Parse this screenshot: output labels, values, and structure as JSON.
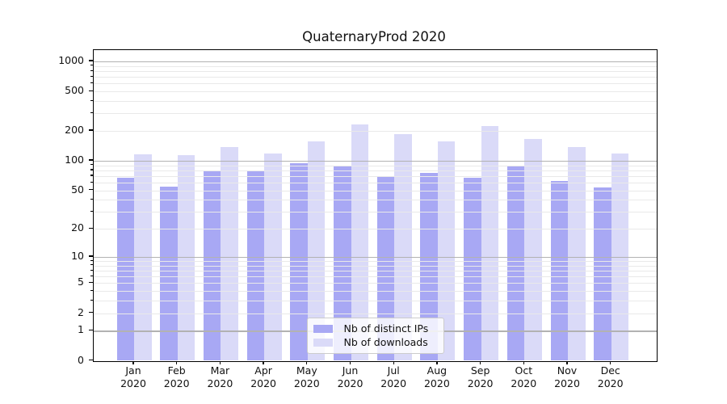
{
  "title": "QuaternaryProd 2020",
  "colors": {
    "bar_distinct_ips": "#a8a8f4",
    "bar_downloads": "#dadaf8",
    "grid_major": "#b2b2b2",
    "grid_minor": "#e9e9e9",
    "spine": "#000000",
    "background": "#ffffff"
  },
  "legend": {
    "items": [
      {
        "label": "Nb of distinct IPs",
        "color": "#a8a8f4"
      },
      {
        "label": "Nb of downloads",
        "color": "#dadaf8"
      }
    ]
  },
  "chart_data": {
    "type": "bar",
    "title": "QuaternaryProd 2020",
    "categories": [
      "Jan 2020",
      "Feb 2020",
      "Mar 2020",
      "Apr 2020",
      "May 2020",
      "Jun 2020",
      "Jul 2020",
      "Aug 2020",
      "Sep 2020",
      "Oct 2020",
      "Nov 2020",
      "Dec 2020"
    ],
    "series": [
      {
        "name": "Nb of distinct IPs",
        "color": "#a8a8f4",
        "values": [
          67,
          55,
          78,
          78,
          94,
          90,
          70,
          76,
          67,
          89,
          62,
          54
        ]
      },
      {
        "name": "Nb of downloads",
        "color": "#dadaf8",
        "values": [
          116,
          114,
          138,
          119,
          156,
          234,
          185,
          158,
          225,
          166,
          138,
          119
        ]
      }
    ],
    "xlabel": "",
    "ylabel": "",
    "yscale": "log1p",
    "ytick_values": [
      0,
      1,
      2,
      5,
      10,
      20,
      50,
      100,
      200,
      500,
      1000
    ],
    "ytick_labels": [
      "0",
      "1",
      "2",
      "5",
      "10",
      "20",
      "50",
      "100",
      "200",
      "500",
      "1000"
    ],
    "ylim": [
      0,
      1300
    ],
    "grid": "major+minor, drawn over bars",
    "legend_position": "lower center-right inside plot"
  }
}
